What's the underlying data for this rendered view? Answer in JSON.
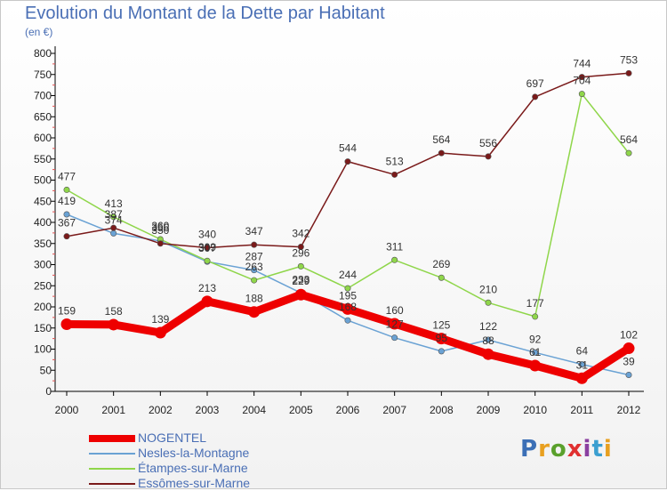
{
  "title": "Evolution du Montant de la Dette par Habitant",
  "subtitle": "(en €)",
  "logo": {
    "text": "Proxiti",
    "colors": [
      "#3b6fb6",
      "#e8a020",
      "#5aa02c",
      "#e03030",
      "#8a3fa0",
      "#3b9fd0",
      "#e8a020"
    ]
  },
  "chart_data": {
    "type": "line",
    "x": [
      "2000",
      "2001",
      "2002",
      "2003",
      "2004",
      "2005",
      "2006",
      "2007",
      "2008",
      "2009",
      "2010",
      "2011",
      "2012"
    ],
    "ylim": [
      0,
      800
    ],
    "yticks": [
      0,
      50,
      100,
      150,
      200,
      250,
      300,
      350,
      400,
      450,
      500,
      550,
      600,
      650,
      700,
      750,
      800
    ],
    "grid": false,
    "legend": "bottom-left",
    "series": [
      {
        "name": "NOGENTEL",
        "color": "#ee0000",
        "values": [
          159,
          158,
          139,
          213,
          188,
          229,
          195,
          160,
          125,
          88,
          61,
          31,
          102
        ],
        "labels": [
          "159",
          "158",
          "139",
          "213",
          "188",
          "229",
          "195",
          "160",
          "125",
          "88",
          "61",
          "31",
          "102"
        ]
      },
      {
        "name": "Nesles-la-Montagne",
        "color": "#6aa2d4",
        "values": [
          419,
          374,
          356,
          307,
          287,
          233,
          168,
          127,
          95,
          122,
          92,
          64,
          39
        ],
        "labels": [
          "419",
          "374",
          "356",
          "307",
          "287",
          "233",
          "168",
          "127",
          "95",
          "122",
          "92",
          "64",
          "39"
        ]
      },
      {
        "name": "Étampes-sur-Marne",
        "color": "#8fd64a",
        "values": [
          477,
          413,
          360,
          309,
          263,
          296,
          244,
          311,
          269,
          210,
          177,
          704,
          564
        ],
        "labels": [
          "477",
          "413",
          "360",
          "309",
          "263",
          "296",
          "244",
          "311",
          "269",
          "210",
          "177",
          "704",
          "564"
        ]
      },
      {
        "name": "Essômes-sur-Marne",
        "color": "#7a1a1a",
        "values": [
          367,
          387,
          350,
          340,
          347,
          342,
          544,
          513,
          564,
          556,
          697,
          744,
          753
        ],
        "labels": [
          "367",
          "387",
          "350",
          "340",
          "347",
          "342",
          "544",
          "513",
          "564",
          "556",
          "697",
          "744",
          "753"
        ]
      }
    ]
  }
}
